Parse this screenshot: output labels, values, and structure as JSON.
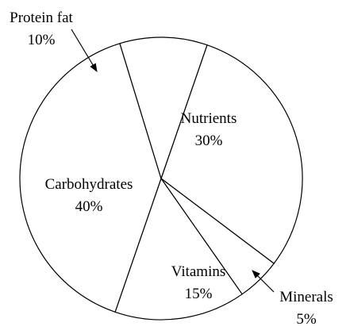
{
  "chart_data": {
    "type": "pie",
    "title": "",
    "slices": [
      {
        "label": "Nutrients",
        "value_label": "30%",
        "value": 30
      },
      {
        "label": "Minerals",
        "value_label": "5%",
        "value": 5
      },
      {
        "label": "Vitamins",
        "value_label": "15%",
        "value": 15
      },
      {
        "label": "Carbohydrates",
        "value_label": "40%",
        "value": 40
      },
      {
        "label": "Protein fat",
        "value_label": "10%",
        "value": 10
      }
    ],
    "colors": {
      "fill": "#ffffff",
      "stroke": "#000000",
      "text": "#000000"
    }
  }
}
